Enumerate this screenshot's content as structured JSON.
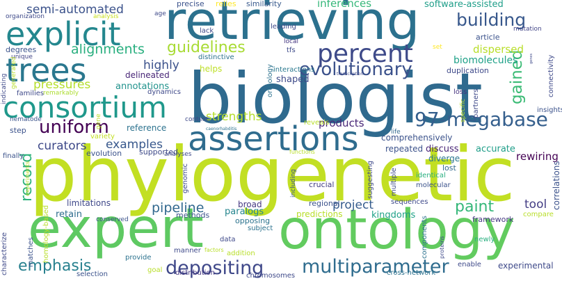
{
  "words": [
    {
      "id": "biologist",
      "text": "biologist",
      "color": "#2f6a8e",
      "orient": "h"
    },
    {
      "id": "phylogenetic",
      "text": "phylogenetic",
      "color": "#c2df23",
      "orient": "h"
    },
    {
      "id": "retrieving",
      "text": "retrieving",
      "color": "#2c718e",
      "orient": "h"
    },
    {
      "id": "expert",
      "text": "expert",
      "color": "#5ec962",
      "orient": "h"
    },
    {
      "id": "ontology",
      "text": "ontology",
      "color": "#62cb5f",
      "orient": "h"
    },
    {
      "id": "assertions",
      "text": "assertions",
      "color": "#2f6c8e",
      "orient": "h"
    },
    {
      "id": "explicit",
      "text": "explicit",
      "color": "#24878e",
      "orient": "h"
    },
    {
      "id": "consortium",
      "text": "consortium",
      "color": "#1f988b",
      "orient": "h"
    },
    {
      "id": "trees",
      "text": "trees",
      "color": "#2a778e",
      "orient": "h"
    },
    {
      "id": "percent",
      "text": "percent",
      "color": "#3e4a89",
      "orient": "h"
    },
    {
      "id": "97-megabase",
      "text": "97-megabase",
      "color": "#355f8d",
      "orient": "h"
    },
    {
      "id": "multiparameter",
      "text": "multiparameter",
      "color": "#2f6c8e",
      "orient": "h"
    },
    {
      "id": "depositing",
      "text": "depositing",
      "color": "#3f4889",
      "orient": "h"
    },
    {
      "id": "paint",
      "text": "paint",
      "color": "#35b779",
      "orient": "h"
    },
    {
      "id": "uniform",
      "text": "uniform",
      "color": "#440154",
      "orient": "h"
    },
    {
      "id": "emphasis",
      "text": "emphasis",
      "color": "#27808e",
      "orient": "h"
    },
    {
      "id": "evolutionary",
      "text": "evolutionary",
      "color": "#3b518b",
      "orient": "h"
    },
    {
      "id": "building",
      "text": "building",
      "color": "#38588c",
      "orient": "h"
    },
    {
      "id": "alignments",
      "text": "alignments",
      "color": "#29af7f",
      "orient": "h"
    },
    {
      "id": "guidelines",
      "text": "guidelines",
      "color": "#a8db34",
      "orient": "h"
    },
    {
      "id": "semi-automated",
      "text": "semi-automated",
      "color": "#3b528b",
      "orient": "h"
    },
    {
      "id": "pipeline",
      "text": "pipeline",
      "color": "#31688e",
      "orient": "h"
    },
    {
      "id": "project",
      "text": "project",
      "color": "#365c8d",
      "orient": "h"
    },
    {
      "id": "strengths",
      "text": "strengths",
      "color": "#b5de2b",
      "orient": "h"
    },
    {
      "id": "examples",
      "text": "examples",
      "color": "#38588c",
      "orient": "h"
    },
    {
      "id": "curators",
      "text": "curators",
      "color": "#3e4989",
      "orient": "h"
    },
    {
      "id": "pressures",
      "text": "pressures",
      "color": "#b5de2b",
      "orient": "h"
    },
    {
      "id": "highly",
      "text": "highly",
      "color": "#3b518b",
      "orient": "h"
    },
    {
      "id": "products",
      "text": "products",
      "color": "#482677",
      "orient": "h"
    },
    {
      "id": "record",
      "text": "record",
      "color": "#2db27d",
      "orient": "v"
    },
    {
      "id": "gained",
      "text": "gained",
      "color": "#3bbb75",
      "orient": "v"
    },
    {
      "id": "tool",
      "text": "tool",
      "color": "#433d84",
      "orient": "h"
    },
    {
      "id": "kingdoms",
      "text": "kingdoms",
      "color": "#1fa187",
      "orient": "h"
    },
    {
      "id": "inferences",
      "text": "inferences",
      "color": "#35b779",
      "orient": "h"
    },
    {
      "id": "software-assisted",
      "text": "software-assisted",
      "color": "#1f9e89",
      "orient": "h"
    },
    {
      "id": "biomolecules",
      "text": "biomolecules",
      "color": "#1fa188",
      "orient": "h"
    },
    {
      "id": "dispersed",
      "text": "dispersed",
      "color": "#b8de29",
      "orient": "h"
    },
    {
      "id": "shaped",
      "text": "shaped",
      "color": "#3e4a89",
      "orient": "h"
    },
    {
      "id": "annotations",
      "text": "annotations",
      "color": "#20928c",
      "orient": "h"
    },
    {
      "id": "rewiring",
      "text": "rewiring",
      "color": "#440154",
      "orient": "h"
    },
    {
      "id": "discuss",
      "text": "discuss",
      "color": "#482576",
      "orient": "h"
    },
    {
      "id": "accurate",
      "text": "accurate",
      "color": "#1f9e89",
      "orient": "h"
    },
    {
      "id": "framework",
      "text": "framework",
      "color": "#453781",
      "orient": "h"
    },
    {
      "id": "paralogs",
      "text": "paralogs",
      "color": "#25858e",
      "orient": "h"
    },
    {
      "id": "opposing",
      "text": "opposing",
      "color": "#2c738e",
      "orient": "h"
    },
    {
      "id": "limitations",
      "text": "limitations",
      "color": "#3f4889",
      "orient": "h"
    },
    {
      "id": "retain",
      "text": "retain",
      "color": "#2e6d8e",
      "orient": "h"
    },
    {
      "id": "reference",
      "text": "reference",
      "color": "#2c728e",
      "orient": "h"
    },
    {
      "id": "comprehensively",
      "text": "comprehensively",
      "color": "#3b528b",
      "orient": "h"
    },
    {
      "id": "repeated",
      "text": "repeated",
      "color": "#3b528b",
      "orient": "h"
    },
    {
      "id": "diverge",
      "text": "diverge",
      "color": "#2a768e",
      "orient": "h"
    },
    {
      "id": "lost",
      "text": "lost",
      "color": "#31688e",
      "orient": "h"
    },
    {
      "id": "evolution",
      "text": "evolution",
      "color": "#3b528b",
      "orient": "h"
    },
    {
      "id": "supported",
      "text": "supported",
      "color": "#3e4a89",
      "orient": "h"
    },
    {
      "id": "step",
      "text": "step",
      "color": "#3b528b",
      "orient": "h"
    },
    {
      "id": "delineated",
      "text": "delineated",
      "color": "#482677",
      "orient": "h"
    },
    {
      "id": "helps",
      "text": "helps",
      "color": "#bddf26",
      "orient": "h"
    },
    {
      "id": "families",
      "text": "families",
      "color": "#3e4989",
      "orient": "h"
    },
    {
      "id": "degrees",
      "text": "degrees",
      "color": "#3b528b",
      "orient": "h"
    },
    {
      "id": "duplication",
      "text": "duplication",
      "color": "#3e4989",
      "orient": "h"
    },
    {
      "id": "interactions",
      "text": "interactions",
      "color": "#2a788e",
      "orient": "h"
    },
    {
      "id": "similarity",
      "text": "similarity",
      "color": "#38598c",
      "orient": "h"
    },
    {
      "id": "precise",
      "text": "precise",
      "color": "#3b528b",
      "orient": "h"
    },
    {
      "id": "relies",
      "text": "relies",
      "color": "#fde725",
      "orient": "h"
    },
    {
      "id": "leading",
      "text": "leading",
      "color": "#3e4989",
      "orient": "h"
    },
    {
      "id": "lack",
      "text": "lack",
      "color": "#3e4989",
      "orient": "h"
    },
    {
      "id": "distinctive",
      "text": "distinctive",
      "color": "#2c728e",
      "orient": "h"
    },
    {
      "id": "article",
      "text": "article",
      "color": "#3b528b",
      "orient": "h"
    },
    {
      "id": "mutation",
      "text": "mutation",
      "color": "#414487",
      "orient": "h"
    },
    {
      "id": "organization",
      "text": "organization",
      "color": "#3e4989",
      "orient": "h"
    },
    {
      "id": "analysis",
      "text": "analysis",
      "color": "#c8e020",
      "orient": "h"
    },
    {
      "id": "age",
      "text": "age",
      "color": "#3e4989",
      "orient": "h"
    },
    {
      "id": "local",
      "text": "local",
      "color": "#453781",
      "orient": "h"
    },
    {
      "id": "tfs",
      "text": "tfs",
      "color": "#3e4a89",
      "orient": "h"
    },
    {
      "id": "set",
      "text": "set",
      "color": "#fde725",
      "orient": "h"
    },
    {
      "id": "unique",
      "text": "unique",
      "color": "#414487",
      "orient": "h"
    },
    {
      "id": "remarkably",
      "text": "remarkably",
      "color": "#addc30",
      "orient": "h"
    },
    {
      "id": "dynamics",
      "text": "dynamics",
      "color": "#3e4989",
      "orient": "h"
    },
    {
      "id": "loss",
      "text": "loss",
      "color": "#46337f",
      "orient": "h"
    },
    {
      "id": "insights",
      "text": "insights",
      "color": "#3b528b",
      "orient": "h"
    },
    {
      "id": "context",
      "text": "context",
      "color": "#3e4989",
      "orient": "h"
    },
    {
      "id": "caenorhabditis",
      "text": "caenorhabditis",
      "color": "#2c728e",
      "orient": "h"
    },
    {
      "id": "reveals",
      "text": "reveals",
      "color": "#b8de29",
      "orient": "h"
    },
    {
      "id": "nematode",
      "text": "nematode",
      "color": "#3b528b",
      "orient": "h"
    },
    {
      "id": "variety",
      "text": "variety",
      "color": "#c2df23",
      "orient": "h"
    },
    {
      "id": "analyses",
      "text": "analyses",
      "color": "#3e4989",
      "orient": "h"
    },
    {
      "id": "life",
      "text": "life",
      "color": "#31688e",
      "orient": "h"
    },
    {
      "id": "finally",
      "text": "finally",
      "color": "#3b528b",
      "orient": "h"
    },
    {
      "id": "functions",
      "text": "functions",
      "color": "#b8de29",
      "orient": "h"
    },
    {
      "id": "identical",
      "text": "identical",
      "color": "#29af7f",
      "orient": "h"
    },
    {
      "id": "molecular",
      "text": "molecular",
      "color": "#3b528b",
      "orient": "h"
    },
    {
      "id": "crucial",
      "text": "crucial",
      "color": "#433d84",
      "orient": "h"
    },
    {
      "id": "regional",
      "text": "regional",
      "color": "#3b528b",
      "orient": "h"
    },
    {
      "id": "sequences",
      "text": "sequences",
      "color": "#3e4989",
      "orient": "h"
    },
    {
      "id": "broad",
      "text": "broad",
      "color": "#453781",
      "orient": "h"
    },
    {
      "id": "predictions",
      "text": "predictions",
      "color": "#b8de29",
      "orient": "h"
    },
    {
      "id": "methods",
      "text": "methods",
      "color": "#3b528b",
      "orient": "h"
    },
    {
      "id": "subject",
      "text": "subject",
      "color": "#2c728e",
      "orient": "h"
    },
    {
      "id": "compare",
      "text": "compare",
      "color": "#b8de29",
      "orient": "h"
    },
    {
      "id": "conserved",
      "text": "conserved",
      "color": "#3b528b",
      "orient": "h"
    },
    {
      "id": "data",
      "text": "data",
      "color": "#3e4989",
      "orient": "h"
    },
    {
      "id": "factors",
      "text": "factors",
      "color": "#b8de29",
      "orient": "h"
    },
    {
      "id": "newly",
      "text": "newly",
      "color": "#29af7f",
      "orient": "h"
    },
    {
      "id": "matches",
      "text": "matches",
      "color": "#3b528b",
      "orient": "v"
    },
    {
      "id": "provide",
      "text": "provide",
      "color": "#2c728e",
      "orient": "h"
    },
    {
      "id": "manner",
      "text": "manner",
      "color": "#3e4989",
      "orient": "h"
    },
    {
      "id": "addition",
      "text": "addition",
      "color": "#b8de29",
      "orient": "h"
    },
    {
      "id": "enable",
      "text": "enable",
      "color": "#3e4989",
      "orient": "h"
    },
    {
      "id": "experimental",
      "text": "experimental",
      "color": "#3e4989",
      "orient": "h"
    },
    {
      "id": "goal",
      "text": "goal",
      "color": "#b8de29",
      "orient": "h"
    },
    {
      "id": "distribution",
      "text": "distribution",
      "color": "#453781",
      "orient": "h"
    },
    {
      "id": "chromosomes",
      "text": "chromosomes",
      "color": "#3e4989",
      "orient": "h"
    },
    {
      "id": "cross-network",
      "text": "cross-network",
      "color": "#2c728e",
      "orient": "h"
    },
    {
      "id": "selection",
      "text": "selection",
      "color": "#3b528b",
      "orient": "h"
    },
    {
      "id": "characterize",
      "text": "characterize",
      "color": "#3e4989",
      "orient": "v"
    },
    {
      "id": "homology-based",
      "text": "homology-based",
      "color": "#b8de29",
      "orient": "v"
    },
    {
      "id": "experiments",
      "text": "experiments",
      "color": "#b8de29",
      "orient": "v"
    },
    {
      "id": "genomic",
      "text": "genomic",
      "color": "#3e4989",
      "orient": "v"
    },
    {
      "id": "including",
      "text": "including",
      "color": "#3b528b",
      "orient": "v"
    },
    {
      "id": "suggesting",
      "text": "suggesting",
      "color": "#3e4989",
      "orient": "v"
    },
    {
      "id": "multiple",
      "text": "multiple",
      "color": "#3e4989",
      "orient": "v"
    },
    {
      "id": "components",
      "text": "components",
      "color": "#2c728e",
      "orient": "v"
    },
    {
      "id": "proteins",
      "text": "proteins",
      "color": "#3e4989",
      "orient": "v"
    },
    {
      "id": "correlations",
      "text": "correlations",
      "color": "#3b528b",
      "orient": "v"
    },
    {
      "id": "connectivity",
      "text": "connectivity",
      "color": "#3e4989",
      "orient": "v"
    },
    {
      "id": "partners",
      "text": "partners",
      "color": "#3e4989",
      "orient": "v"
    },
    {
      "id": "specific",
      "text": "specific",
      "color": "#b8de29",
      "orient": "v"
    },
    {
      "id": "orthology",
      "text": "orthology",
      "color": "#2c728e",
      "orient": "v"
    },
    {
      "id": "indicating",
      "text": "indicating",
      "color": "#3e4989",
      "orient": "v"
    },
    {
      "id": "generated",
      "text": "generated",
      "color": "#b8de29",
      "orient": "v"
    },
    {
      "id": "gene",
      "text": "gene",
      "color": "#b8de29",
      "orient": "v"
    },
    {
      "id": "transcription",
      "text": "transcription",
      "color": "#3e4989",
      "orient": "h"
    },
    {
      "id": "genes",
      "text": "genes",
      "color": "#3e4989",
      "orient": "v"
    }
  ]
}
